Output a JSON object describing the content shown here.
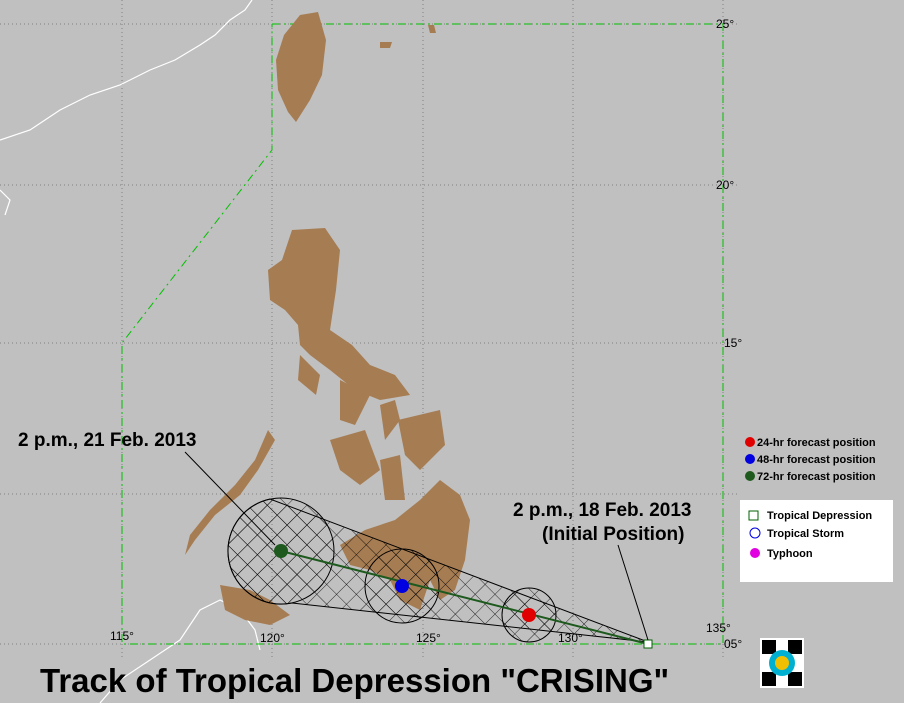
{
  "map": {
    "title": "Track of Tropical Depression \"CRISING\"",
    "lat_labels": [
      "25°",
      "20°",
      "15°",
      "05°"
    ],
    "lon_labels": [
      "115°",
      "120°",
      "125°",
      "130°",
      "135°"
    ],
    "annotations": [
      "2 p.m., 21 Feb. 2013",
      "2 p.m., 18 Feb. 2013",
      "(Initial Position)"
    ],
    "legend_forecast": [
      "24-hr forecast position",
      "48-hr forecast position",
      "72-hr forecast position"
    ],
    "legend_category": [
      "Tropical Depression",
      "Tropical Storm",
      "Typhoon"
    ]
  }
}
